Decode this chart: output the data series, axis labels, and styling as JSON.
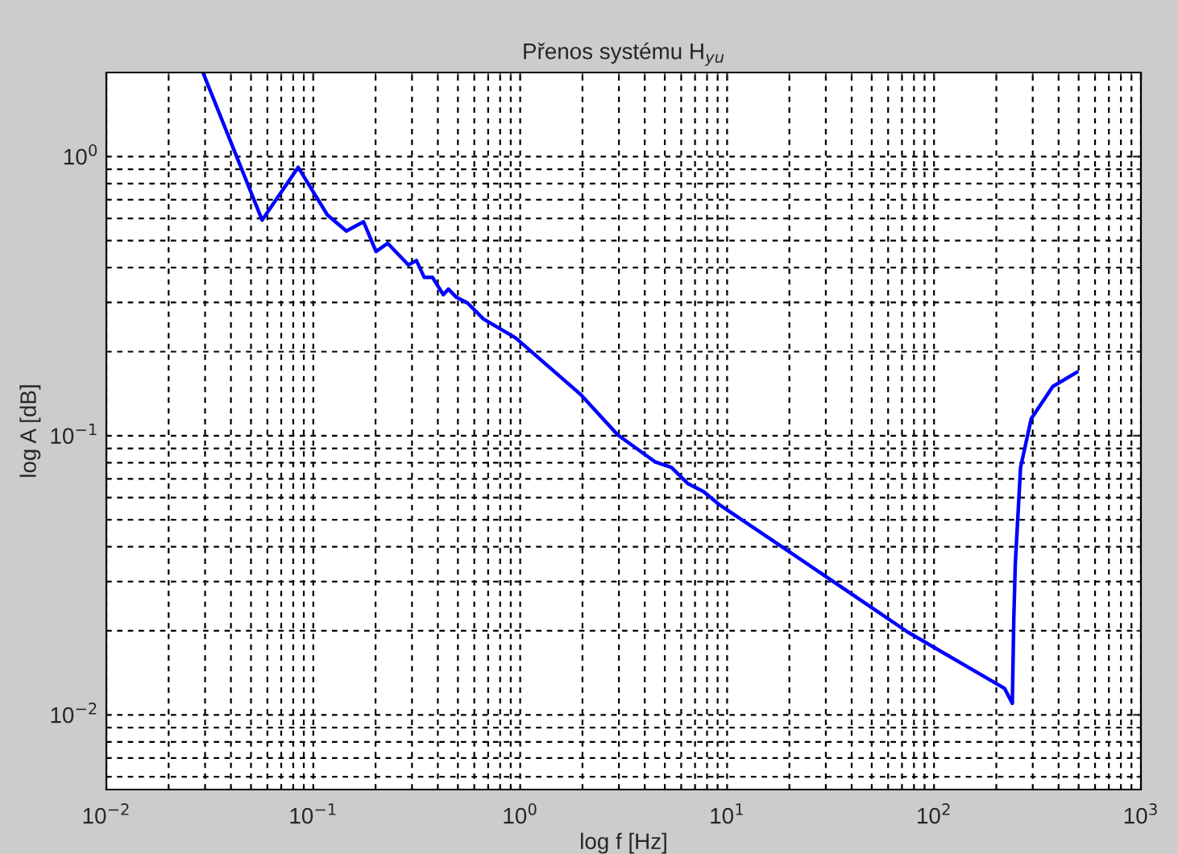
{
  "chart_data": {
    "type": "line",
    "title": "Přenos systému H$_{yu}$",
    "xlabel": "log f [Hz]",
    "ylabel": "log A [dB]",
    "log": "xy",
    "grid": true,
    "legend": false,
    "marker": "none",
    "line_style": "solid",
    "xlim": [
      0.01,
      1000
    ],
    "ylim": [
      0.0054,
      2
    ],
    "xticks": [
      {
        "value": 0.01,
        "label": "10$^{−2}$"
      },
      {
        "value": 0.1,
        "label": "10$^{−1}$"
      },
      {
        "value": 1,
        "label": "10$^{0}$"
      },
      {
        "value": 10,
        "label": "10$^{1}$"
      },
      {
        "value": 100,
        "label": "10$^{2}$"
      },
      {
        "value": 1000,
        "label": "10$^{3}$"
      }
    ],
    "yticks": [
      {
        "value": 0.01,
        "label": "10$^{−2}$"
      },
      {
        "value": 0.1,
        "label": "10$^{−1}$"
      },
      {
        "value": 1,
        "label": "10$^{0}$"
      }
    ],
    "series": [
      {
        "color": "#0000ff",
        "x": [
          0.0293,
          0.0566,
          0.0845,
          0.117,
          0.1445,
          0.175,
          0.201,
          0.229,
          0.288,
          0.315,
          0.344,
          0.377,
          0.425,
          0.45,
          0.492,
          0.556,
          0.664,
          0.95,
          1.95,
          2.96,
          4.5,
          5.38,
          6.44,
          7.7,
          9.2,
          18.9,
          74.6,
          219,
          239,
          243,
          247,
          262,
          295,
          375,
          491
        ],
        "values": [
          2.0,
          0.592,
          0.915,
          0.618,
          0.541,
          0.584,
          0.457,
          0.489,
          0.409,
          0.424,
          0.369,
          0.369,
          0.32,
          0.335,
          0.313,
          0.299,
          0.262,
          0.224,
          0.141,
          0.1007,
          0.0805,
          0.077,
          0.0675,
          0.063,
          0.0565,
          0.0395,
          0.0198,
          0.01245,
          0.011,
          0.0222,
          0.0346,
          0.077,
          0.115,
          0.15,
          0.169
        ]
      }
    ]
  }
}
